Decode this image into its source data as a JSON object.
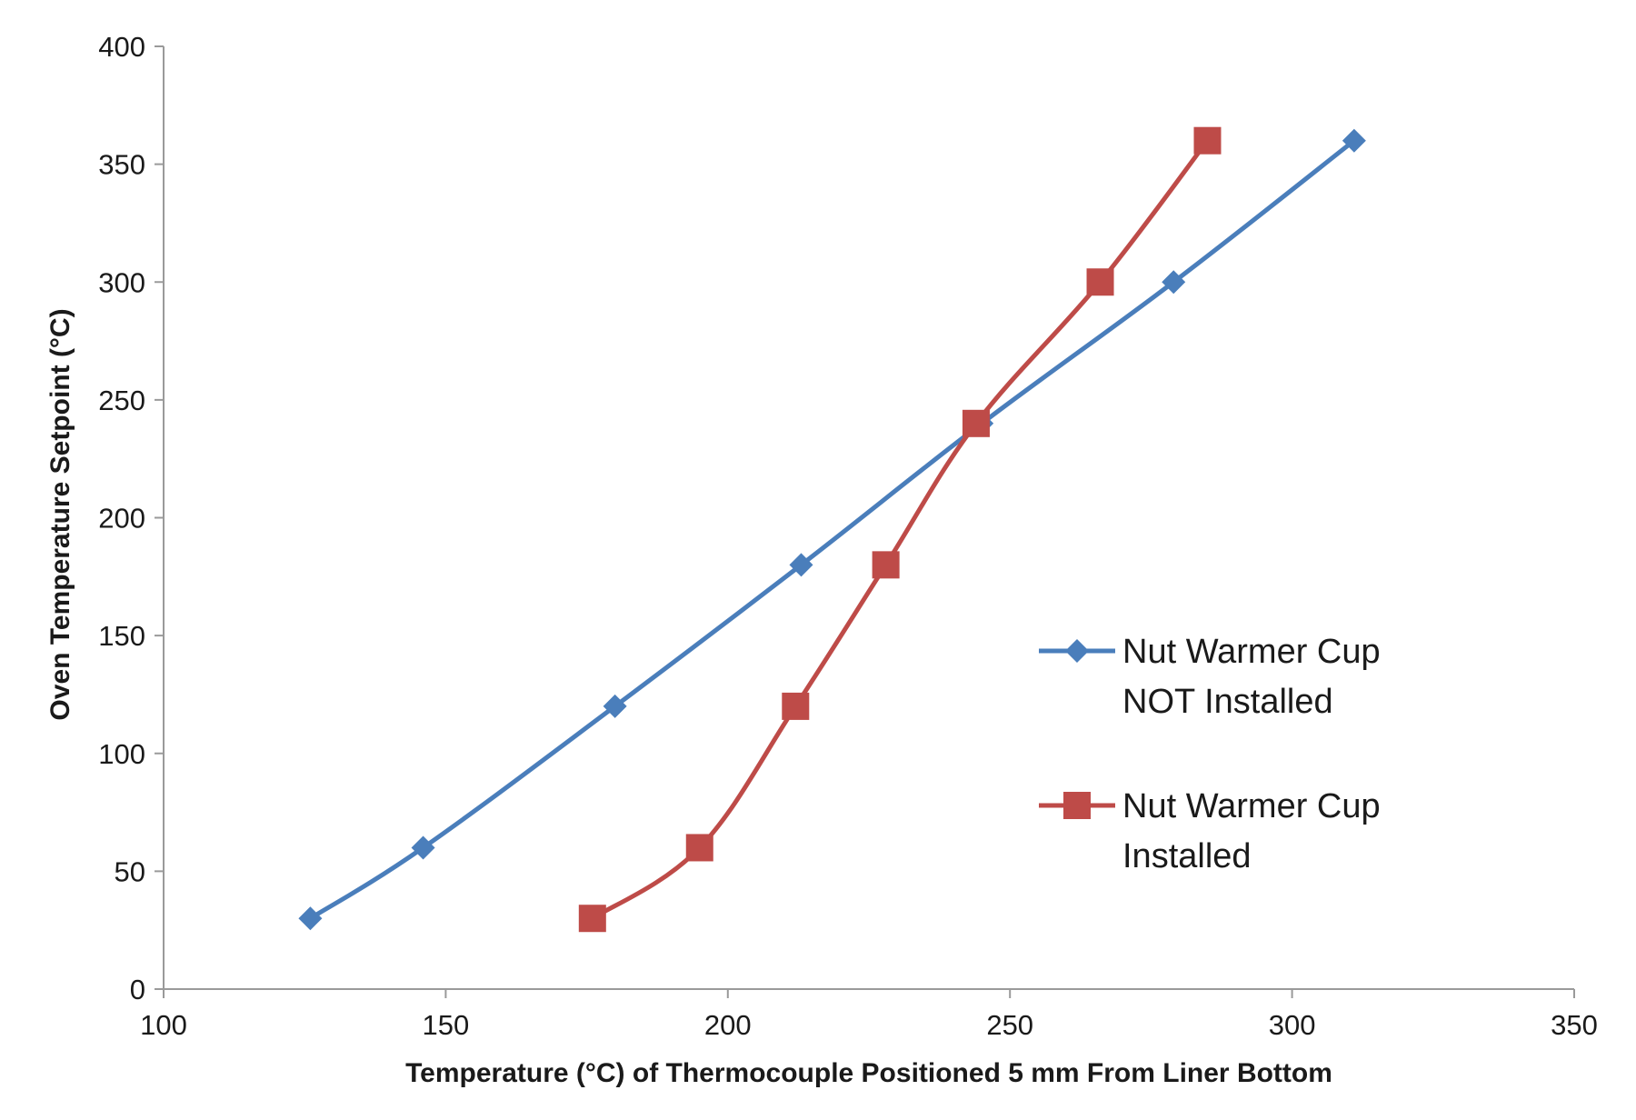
{
  "chart_data": {
    "type": "line",
    "title": "",
    "xlabel": "Temperature (°C) of Thermocouple Positioned 5 mm From Liner Bottom",
    "ylabel": "Oven Temperature Setpoint (°C)",
    "xlim": [
      100,
      350
    ],
    "ylim": [
      0,
      400
    ],
    "x_ticks": [
      "100",
      "150",
      "200",
      "250",
      "300",
      "350"
    ],
    "y_ticks": [
      "0",
      "50",
      "100",
      "150",
      "200",
      "250",
      "300",
      "350",
      "400"
    ],
    "grid": false,
    "legend_position": "right-center",
    "series": [
      {
        "name": "Nut Warmer Cup NOT Installed",
        "legend_lines": [
          "Nut Warmer Cup",
          "NOT Installed"
        ],
        "color": "#4a7ebb",
        "marker": "diamond",
        "x": [
          126,
          146,
          180,
          213,
          245,
          279,
          311
        ],
        "y": [
          30,
          60,
          120,
          180,
          240,
          300,
          360
        ]
      },
      {
        "name": "Nut Warmer Cup Installed",
        "legend_lines": [
          "Nut Warmer Cup",
          "Installed"
        ],
        "color": "#be4b48",
        "marker": "square",
        "x": [
          176,
          195,
          212,
          228,
          244,
          266,
          285
        ],
        "y": [
          30,
          60,
          120,
          180,
          240,
          300,
          360
        ]
      }
    ]
  }
}
